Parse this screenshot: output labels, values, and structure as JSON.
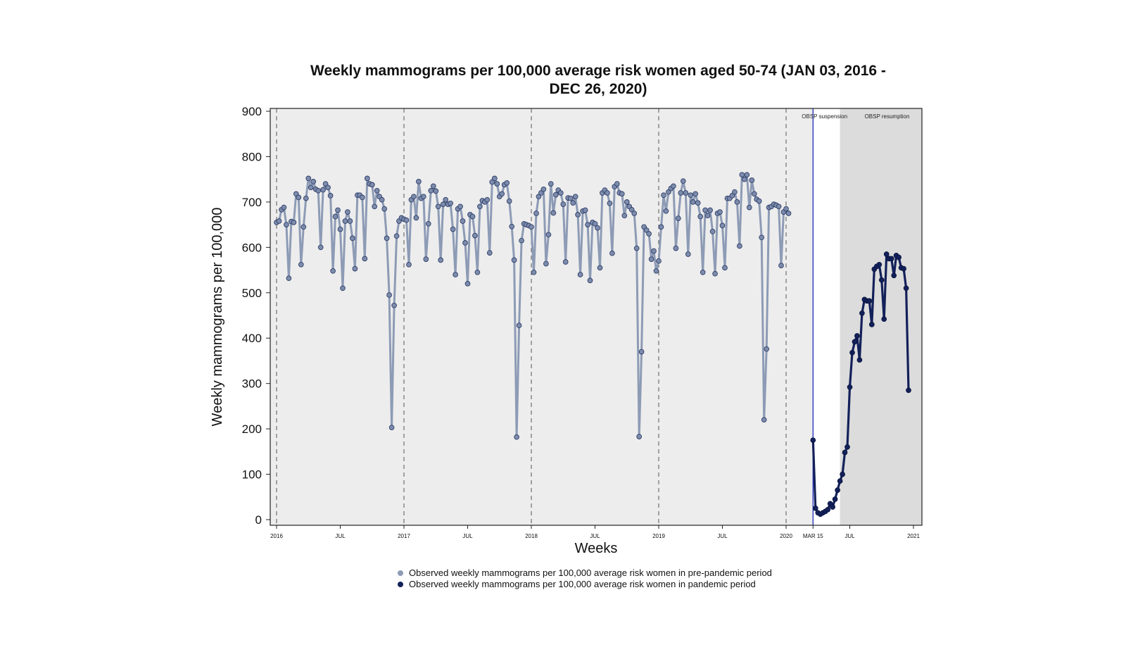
{
  "chart_data": {
    "type": "line",
    "title": "Weekly mammograms per 100,000 average risk women aged 50-74 (JAN 03, 2016 - DEC 26, 2020)",
    "xlabel": "Weeks",
    "ylabel": "Weekly mammograms per 100,000",
    "ylim": [
      0,
      900
    ],
    "yticks": [
      0,
      100,
      200,
      300,
      400,
      500,
      600,
      700,
      800,
      900
    ],
    "xlim_weeks": [
      -1,
      260.5
    ],
    "xticks": [
      {
        "week": 0,
        "label": "2016"
      },
      {
        "week": 26,
        "label": "JUL"
      },
      {
        "week": 52,
        "label": "2017"
      },
      {
        "week": 78,
        "label": "JUL"
      },
      {
        "week": 104,
        "label": "2018"
      },
      {
        "week": 130,
        "label": "JUL"
      },
      {
        "week": 156,
        "label": "2019"
      },
      {
        "week": 182,
        "label": "JUL"
      },
      {
        "week": 208,
        "label": "2020"
      },
      {
        "week": 219,
        "label": "MAR 15"
      },
      {
        "week": 234,
        "label": "JUL"
      },
      {
        "week": 260,
        "label": "2021"
      }
    ],
    "year_boundaries_weeks": [
      0,
      52,
      104,
      156,
      208
    ],
    "annotations": [
      {
        "text": "OBSP suspension",
        "week": 219
      },
      {
        "text": "OBSP resumption",
        "week": 230
      }
    ],
    "series": [
      {
        "name": "Observed weekly mammograms per 100,000 average risk women in pre-pandemic period",
        "color": "#8d9bb5",
        "start_week": 0,
        "values": [
          655,
          658,
          683,
          688,
          650,
          532,
          657,
          655,
          718,
          710,
          562,
          645,
          708,
          752,
          732,
          745,
          728,
          725,
          600,
          727,
          740,
          732,
          714,
          548,
          668,
          682,
          640,
          510,
          658,
          678,
          658,
          620,
          553,
          715,
          715,
          710,
          575,
          752,
          740,
          738,
          690,
          725,
          712,
          705,
          685,
          620,
          495,
          203,
          472,
          625,
          658,
          665,
          662,
          660,
          562,
          705,
          712,
          665,
          745,
          708,
          712,
          574,
          652,
          725,
          735,
          724,
          690,
          572,
          695,
          705,
          695,
          697,
          640,
          540,
          685,
          690,
          658,
          610,
          520,
          672,
          668,
          626,
          545,
          690,
          703,
          700,
          705,
          588,
          744,
          752,
          740,
          712,
          718,
          738,
          742,
          702,
          646,
          572,
          182,
          428,
          615,
          652,
          650,
          648,
          645,
          545,
          675,
          712,
          720,
          728,
          564,
          628,
          740,
          676,
          716,
          726,
          720,
          695,
          568,
          709,
          708,
          698,
          712,
          672,
          540,
          680,
          682,
          650,
          527,
          655,
          652,
          643,
          555,
          720,
          726,
          720,
          697,
          587,
          734,
          740,
          720,
          718,
          670,
          700,
          690,
          683,
          675,
          598,
          183,
          370,
          645,
          638,
          630,
          574,
          592,
          548,
          570,
          645,
          715,
          680,
          722,
          730,
          735,
          598,
          664,
          720,
          746,
          720,
          585,
          715,
          700,
          718,
          698,
          668,
          545,
          682,
          670,
          682,
          635,
          542,
          675,
          678,
          648,
          555,
          708,
          708,
          714,
          722,
          700,
          603,
          760,
          750,
          760,
          688,
          748,
          718,
          706,
          702,
          622,
          220,
          376,
          688,
          690,
          695,
          693,
          690,
          560,
          678,
          685,
          675
        ]
      },
      {
        "name": "Observed weekly mammograms per 100,000 average risk women in pandemic period",
        "color": "#13215a",
        "start_week": 219,
        "values": [
          175,
          25,
          15,
          12,
          15,
          18,
          22,
          35,
          28,
          45,
          65,
          85,
          100,
          148,
          160,
          292,
          368,
          392,
          405,
          352,
          455,
          485,
          482,
          482,
          430,
          552,
          558,
          562,
          528,
          442,
          585,
          575,
          575,
          538,
          582,
          578,
          555,
          553,
          510,
          285
        ]
      }
    ]
  }
}
